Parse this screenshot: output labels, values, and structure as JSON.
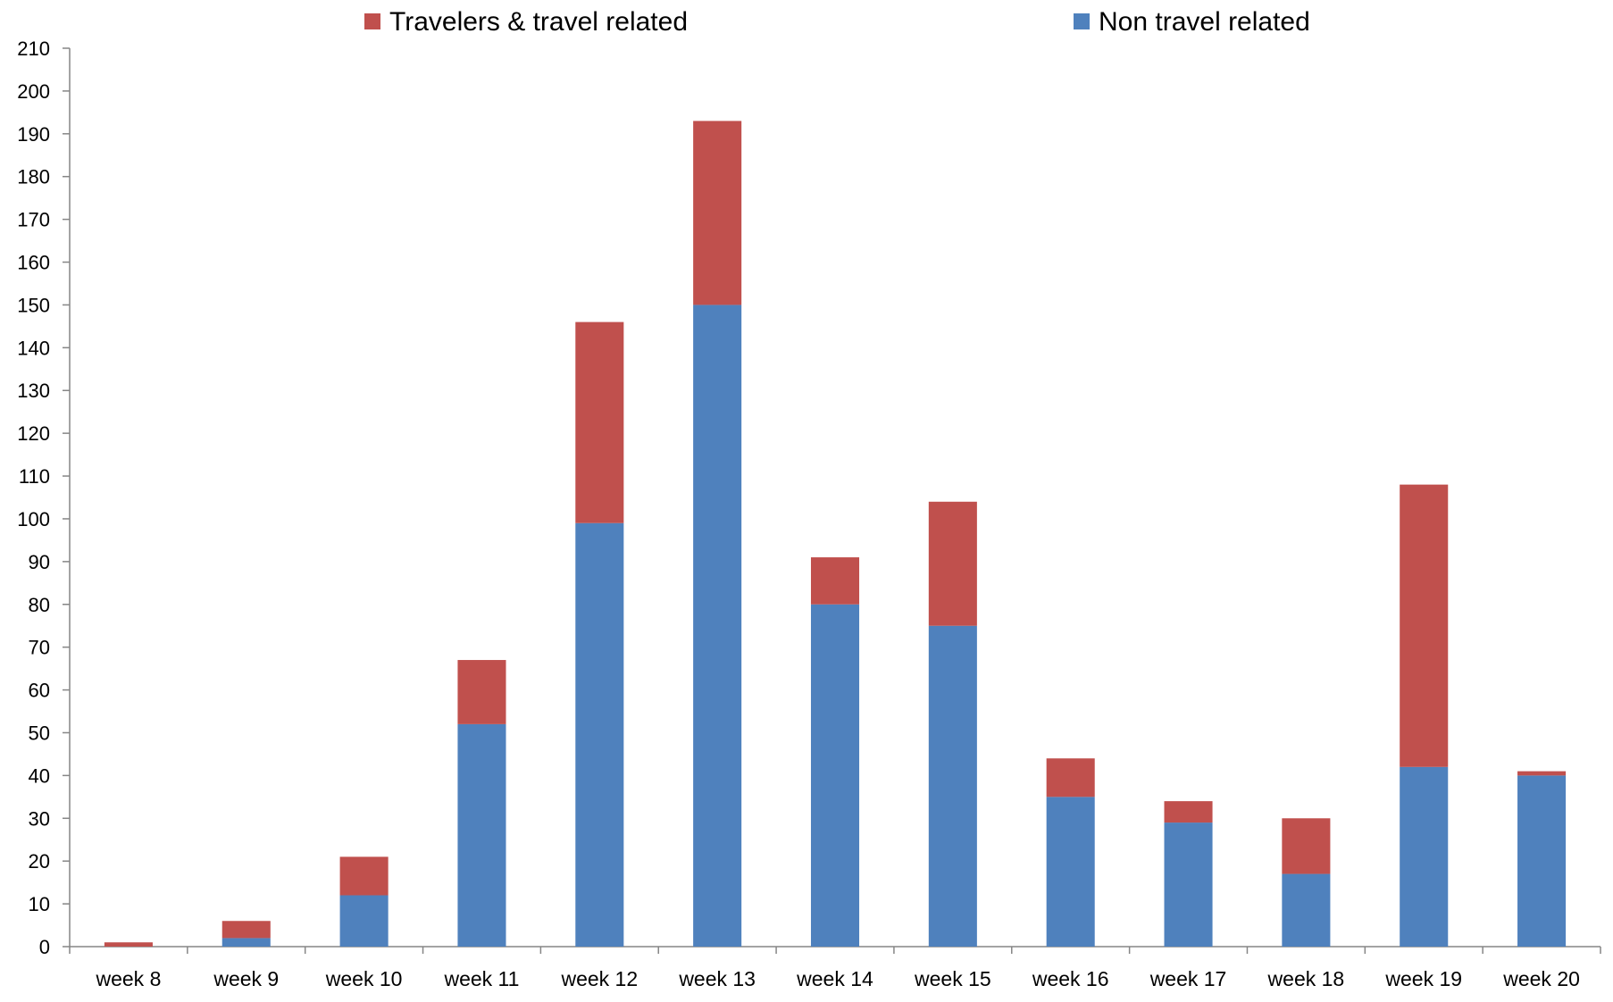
{
  "chart_data": {
    "type": "bar",
    "stacked": true,
    "categories": [
      "week 8",
      "week 9",
      "week 10",
      "week 11",
      "week 12",
      "week 13",
      "week 14",
      "week 15",
      "week 16",
      "week 17",
      "week 18",
      "week 19",
      "week 20"
    ],
    "series": [
      {
        "name": "Non travel related",
        "color": "#4F81BD",
        "values": [
          0,
          2,
          12,
          52,
          99,
          150,
          80,
          75,
          35,
          29,
          17,
          42,
          40
        ]
      },
      {
        "name": "Travelers & travel related",
        "color": "#C0504D",
        "values": [
          1,
          4,
          9,
          15,
          47,
          43,
          11,
          29,
          9,
          5,
          13,
          66,
          1
        ]
      }
    ],
    "legend": {
      "position": "top",
      "order": [
        "Travelers & travel related",
        "Non travel related"
      ]
    },
    "ylim": [
      0,
      210
    ],
    "yticks": [
      0,
      10,
      20,
      30,
      40,
      50,
      60,
      70,
      80,
      90,
      100,
      110,
      120,
      130,
      140,
      150,
      160,
      170,
      180,
      190,
      200,
      210
    ],
    "grid": false,
    "axis_color": "#868686"
  }
}
